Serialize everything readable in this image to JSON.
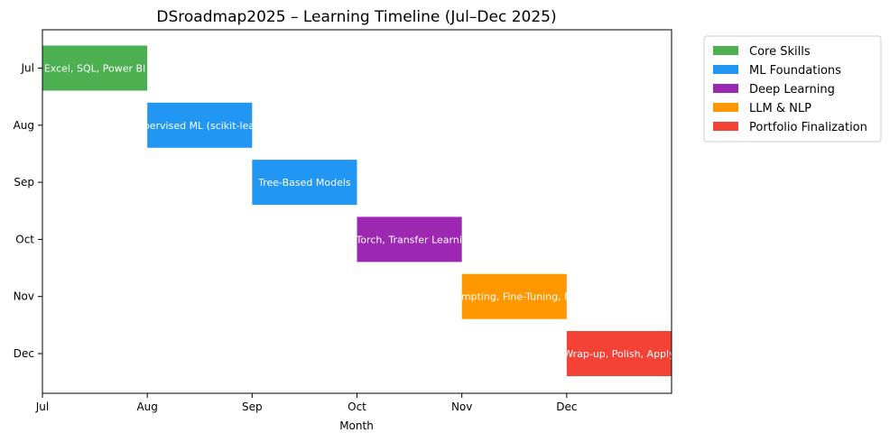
{
  "chart_data": {
    "type": "bar",
    "orientation": "horizontal-gantt",
    "title": "DSroadmap2025 – Learning Timeline (Jul–Dec 2025)",
    "xlabel": "Month",
    "ylabel": "",
    "x_ticks": [
      "Jul",
      "Aug",
      "Sep",
      "Oct",
      "Nov",
      "Dec"
    ],
    "y_categories": [
      "Jul",
      "Aug",
      "Sep",
      "Oct",
      "Nov",
      "Dec"
    ],
    "xlim": [
      0,
      6
    ],
    "legend_position": "outside-top-right",
    "grid": false,
    "tasks": [
      {
        "row": "Jul",
        "start": 0,
        "end": 1,
        "label": "Excel, SQL, Power BI",
        "category": "Core Skills"
      },
      {
        "row": "Aug",
        "start": 1,
        "end": 2,
        "label": "Supervised ML (scikit-learn)",
        "category": "ML Foundations"
      },
      {
        "row": "Sep",
        "start": 2,
        "end": 3,
        "label": "Tree-Based Models",
        "category": "ML Foundations"
      },
      {
        "row": "Oct",
        "start": 3,
        "end": 4,
        "label": "PyTorch, Transfer Learning",
        "category": "Deep Learning"
      },
      {
        "row": "Nov",
        "start": 4,
        "end": 5,
        "label": "Prompting, Fine-Tuning, NLP",
        "category": "LLM & NLP"
      },
      {
        "row": "Dec",
        "start": 5,
        "end": 6,
        "label": "Wrap-up, Polish, Apply",
        "category": "Portfolio Finalization"
      }
    ],
    "legend": [
      {
        "name": "Core Skills",
        "color": "#4caf50"
      },
      {
        "name": "ML Foundations",
        "color": "#2196f3"
      },
      {
        "name": "Deep Learning",
        "color": "#9c27b0"
      },
      {
        "name": "LLM & NLP",
        "color": "#ff9800"
      },
      {
        "name": "Portfolio Finalization",
        "color": "#f44336"
      }
    ]
  }
}
